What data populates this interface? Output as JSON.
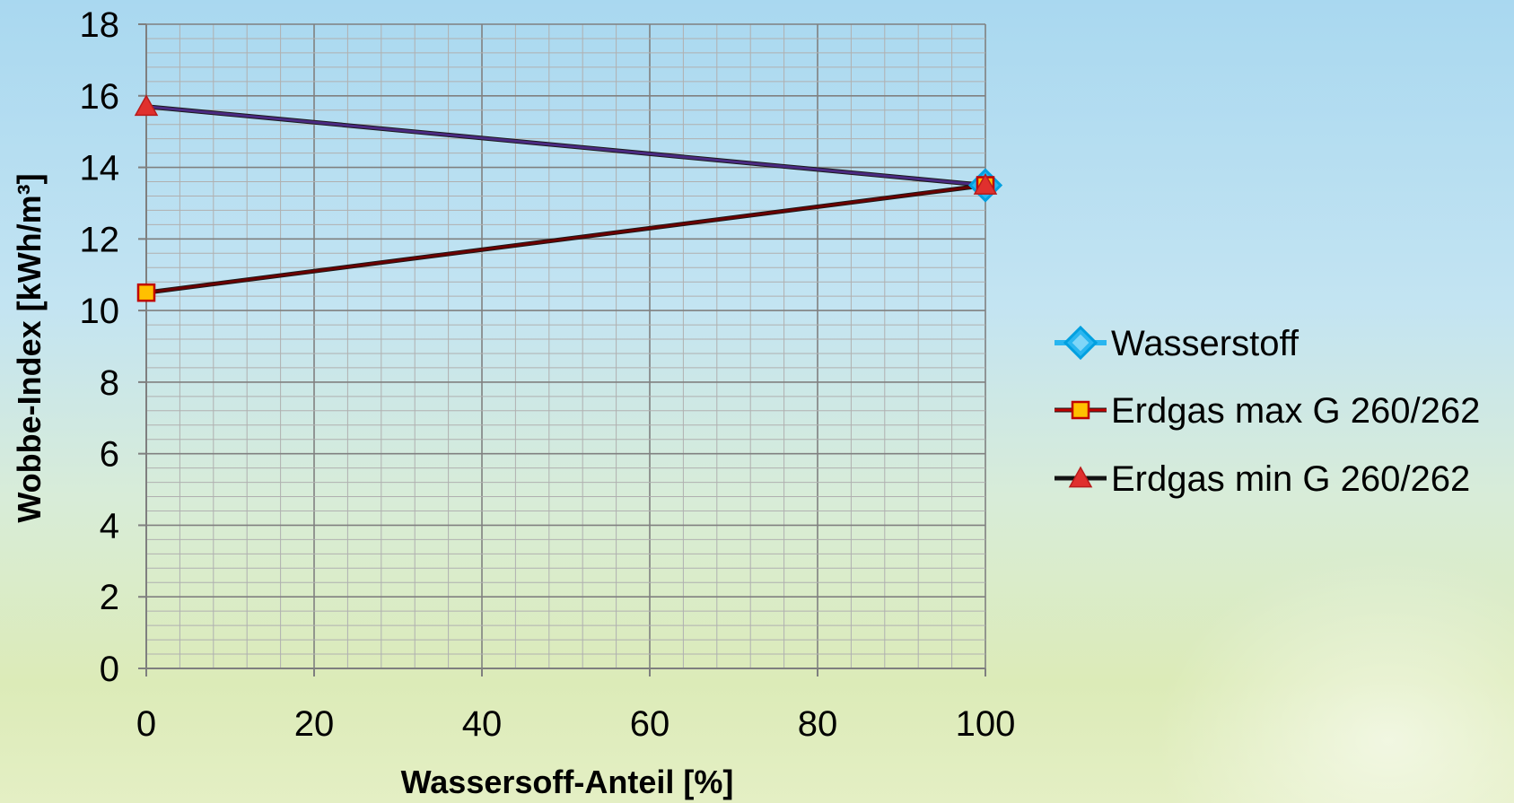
{
  "chart_data": {
    "type": "line",
    "xlabel": "Wassersoff-Anteil [%]",
    "ylabel": "Wobbe-Index [kWh/m³]",
    "xlim": [
      0,
      100
    ],
    "ylim": [
      0,
      18
    ],
    "x_ticks": [
      "0",
      "20",
      "40",
      "60",
      "80",
      "100"
    ],
    "y_ticks": [
      "0",
      "2",
      "4",
      "6",
      "8",
      "10",
      "12",
      "14",
      "16",
      "18"
    ],
    "grid": true,
    "legend_position": "right",
    "series": [
      {
        "name": "Wasserstoff",
        "marker": "diamond",
        "color": "#00b0f0",
        "points": [
          {
            "x": 100,
            "y": 13.5
          }
        ]
      },
      {
        "name": "Erdgas max G 260/262",
        "marker": "square",
        "color": "#c00000",
        "marker_fill": "#ffc000",
        "points": [
          {
            "x": 0,
            "y": 10.5
          },
          {
            "x": 100,
            "y": 13.5
          }
        ]
      },
      {
        "name": "Erdgas min G 260/262",
        "marker": "triangle",
        "color": "#1a1a1a",
        "marker_fill": "#e0302e",
        "points": [
          {
            "x": 0,
            "y": 15.7
          },
          {
            "x": 100,
            "y": 13.5
          }
        ]
      }
    ],
    "colors": {
      "line_max": "#6b0000",
      "line_min": "#4b2a82",
      "grid_minor": "#b0b0b0",
      "grid_major": "#808080"
    }
  }
}
